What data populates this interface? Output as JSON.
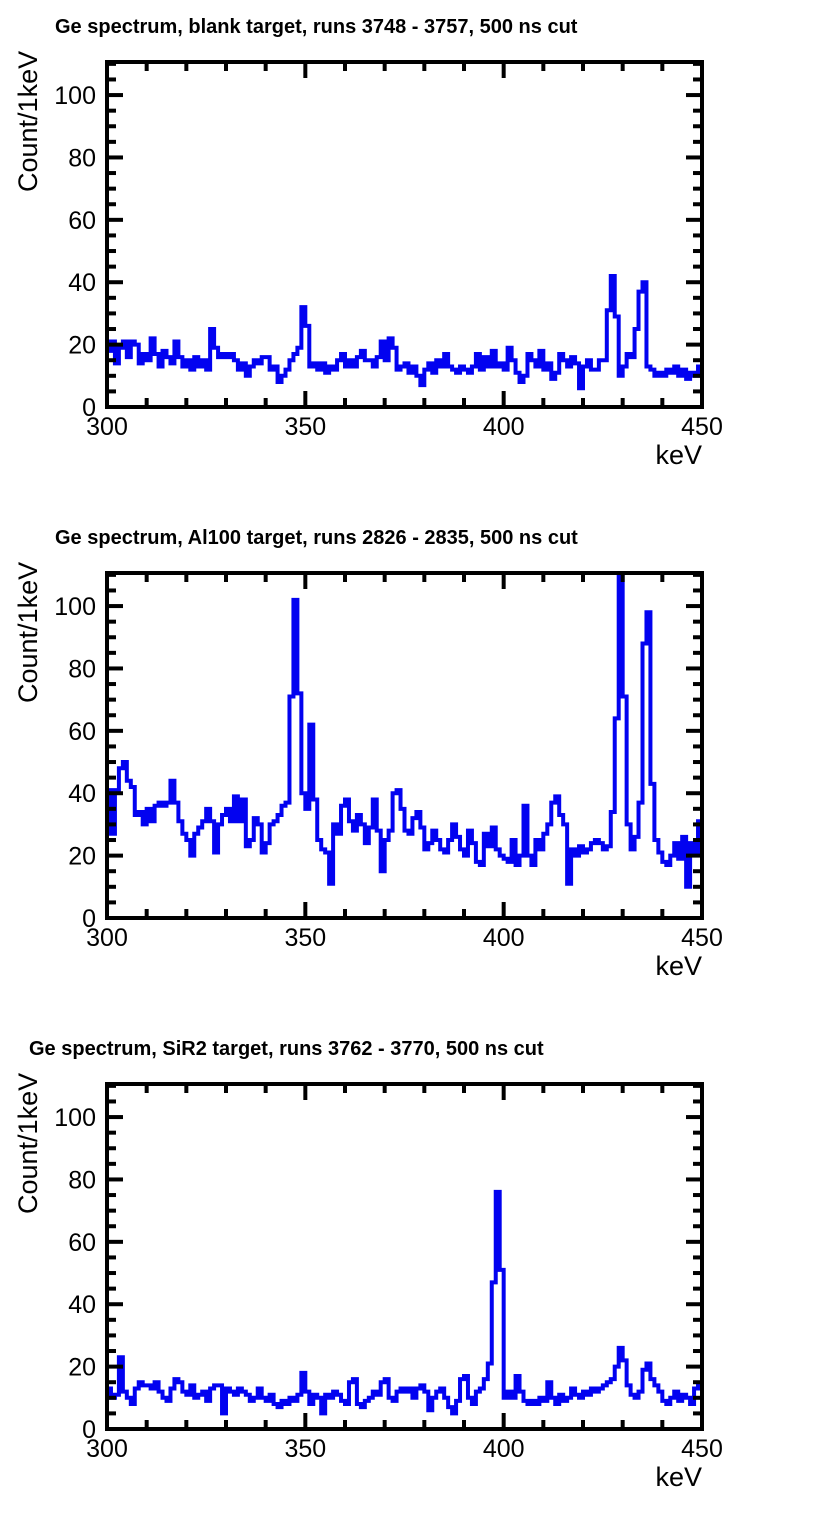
{
  "style": {
    "background": "#ffffff",
    "histogram_color": "#0202f0",
    "frame_color": "#000000",
    "text_color": "#000000"
  },
  "chart_data": [
    {
      "type": "line",
      "subtype": "step-histogram",
      "title": "Ge spectrum, blank target, runs 3748 - 3757, 500 ns cut",
      "xlabel": "keV",
      "ylabel": "Count/1keV",
      "x_start": 300,
      "bin_width": 1,
      "xlim": [
        300,
        450
      ],
      "ylim": [
        0,
        110.6
      ],
      "xticks": [
        300,
        350,
        400,
        450
      ],
      "xtick_minor_step": 10,
      "yticks": [
        0,
        20,
        40,
        60,
        80,
        100
      ],
      "ytick_minor_step": 5,
      "grid": false,
      "legend": false,
      "values": [
        18,
        21,
        14,
        19,
        21,
        16,
        21,
        20,
        14,
        17,
        15,
        22,
        17,
        13,
        18,
        16,
        14,
        21,
        16,
        13,
        15,
        12,
        16,
        13,
        15,
        12,
        25,
        19,
        16,
        17,
        16,
        17,
        15,
        12,
        14,
        10,
        13,
        15,
        14,
        16,
        16,
        12,
        13,
        8,
        10,
        12,
        15,
        17,
        19,
        32,
        26,
        13,
        14,
        12,
        14,
        11,
        13,
        12,
        15,
        17,
        13,
        15,
        13,
        16,
        18,
        15,
        15,
        13,
        16,
        21,
        15,
        22,
        19,
        12,
        13,
        14,
        11,
        13,
        10,
        7,
        12,
        14,
        11,
        15,
        13,
        17,
        13,
        12,
        11,
        13,
        12,
        11,
        13,
        17,
        12,
        16,
        13,
        18,
        13,
        14,
        12,
        19,
        15,
        11,
        8,
        10,
        17,
        15,
        13,
        18,
        12,
        14,
        9,
        11,
        17,
        15,
        13,
        16,
        14,
        6,
        13,
        15,
        12,
        12,
        15,
        15,
        31,
        42,
        29,
        10,
        13,
        17,
        16,
        25,
        37,
        40,
        13,
        12,
        10,
        11,
        10,
        12,
        11,
        13,
        10,
        12,
        9,
        11,
        10,
        13
      ]
    },
    {
      "type": "line",
      "subtype": "step-histogram",
      "title": "Ge spectrum, Al100 target, runs 2826 - 2835, 500 ns cut",
      "xlabel": "keV",
      "ylabel": "Count/1keV",
      "x_start": 300,
      "bin_width": 1,
      "xlim": [
        300,
        450
      ],
      "ylim": [
        0,
        110.6
      ],
      "xticks": [
        300,
        350,
        400,
        450
      ],
      "xtick_minor_step": 10,
      "yticks": [
        0,
        20,
        40,
        60,
        80,
        100
      ],
      "ytick_minor_step": 5,
      "grid": false,
      "legend": false,
      "values": [
        41,
        27,
        41,
        48,
        50,
        44,
        42,
        33,
        34,
        30,
        35,
        31,
        36,
        37,
        36,
        37,
        44,
        37,
        31,
        27,
        25,
        20,
        27,
        29,
        31,
        35,
        31,
        21,
        30,
        33,
        35,
        31,
        39,
        31,
        38,
        23,
        25,
        32,
        30,
        21,
        24,
        30,
        31,
        33,
        36,
        37,
        71,
        102,
        72,
        40,
        35,
        62,
        38,
        25,
        22,
        21,
        11,
        30,
        27,
        36,
        38,
        31,
        28,
        33,
        30,
        24,
        29,
        38,
        28,
        15,
        25,
        28,
        40,
        41,
        35,
        28,
        27,
        32,
        34,
        29,
        22,
        24,
        28,
        25,
        22,
        21,
        25,
        30,
        26,
        22,
        20,
        28,
        24,
        18,
        17,
        27,
        23,
        29,
        22,
        20,
        19,
        18,
        25,
        17,
        20,
        36,
        20,
        17,
        25,
        22,
        27,
        30,
        37,
        39,
        33,
        30,
        11,
        22,
        20,
        23,
        21,
        22,
        24,
        25,
        24,
        22,
        23,
        34,
        64,
        112,
        71,
        30,
        22,
        26,
        37,
        88,
        98,
        43,
        25,
        21,
        18,
        17,
        20,
        24,
        19,
        26,
        10,
        24,
        21,
        31
      ]
    },
    {
      "type": "line",
      "subtype": "step-histogram",
      "title": "Ge spectrum, SiR2 target, runs 3762 - 3770, 500 ns cut",
      "xlabel": "keV",
      "ylabel": "Count/1keV",
      "x_start": 300,
      "bin_width": 1,
      "xlim": [
        300,
        450
      ],
      "ylim": [
        0,
        110.6
      ],
      "xticks": [
        300,
        350,
        400,
        450
      ],
      "xtick_minor_step": 10,
      "yticks": [
        0,
        20,
        40,
        60,
        80,
        100
      ],
      "ytick_minor_step": 5,
      "grid": false,
      "legend": false,
      "values": [
        13,
        10,
        11,
        23,
        12,
        10,
        8,
        13,
        15,
        14,
        14,
        13,
        15,
        12,
        10,
        9,
        13,
        16,
        15,
        12,
        11,
        14,
        10,
        11,
        12,
        9,
        13,
        14,
        14,
        5,
        13,
        12,
        11,
        13,
        12,
        11,
        9,
        10,
        13,
        10,
        9,
        11,
        8,
        7,
        9,
        8,
        10,
        9,
        11,
        18,
        12,
        8,
        11,
        10,
        5,
        11,
        10,
        12,
        11,
        9,
        8,
        15,
        16,
        8,
        7,
        9,
        10,
        12,
        11,
        15,
        16,
        10,
        9,
        12,
        13,
        12,
        13,
        10,
        13,
        14,
        12,
        6,
        10,
        12,
        13,
        10,
        7,
        5,
        9,
        16,
        17,
        10,
        8,
        12,
        13,
        16,
        21,
        47,
        76,
        51,
        10,
        12,
        10,
        17,
        12,
        9,
        8,
        9,
        8,
        10,
        9,
        15,
        10,
        8,
        11,
        9,
        10,
        13,
        11,
        10,
        12,
        11,
        13,
        12,
        13,
        14,
        15,
        16,
        20,
        26,
        22,
        14,
        11,
        10,
        12,
        19,
        21,
        16,
        14,
        12,
        9,
        8,
        10,
        12,
        9,
        11,
        10,
        8,
        13,
        14
      ]
    }
  ]
}
